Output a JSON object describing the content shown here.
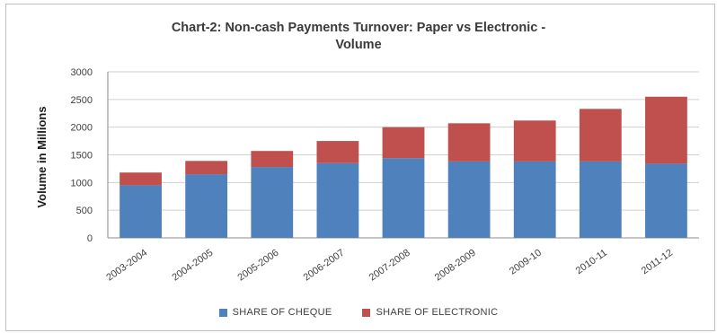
{
  "chart_data": {
    "type": "bar",
    "stacked": true,
    "title_line1": "Chart-2: Non-cash Payments Turnover: Paper vs Electronic -",
    "title_line2": "Volume",
    "ylabel": "Volume in Millions",
    "xlabel": "",
    "ylim": [
      0,
      3000
    ],
    "yticks": [
      0,
      500,
      1000,
      1500,
      2000,
      2500,
      3000
    ],
    "grid": true,
    "legend_position": "bottom",
    "categories": [
      "2003-2004",
      "2004-2005",
      "2005-2006",
      "2006-2007",
      "2007-2008",
      "2008-2009",
      "2009-10",
      "2010-11",
      "2011-12"
    ],
    "series": [
      {
        "name": "SHARE OF CHEQUE",
        "color": "#4f81bd",
        "values": [
          950,
          1150,
          1280,
          1350,
          1440,
          1380,
          1380,
          1380,
          1340
        ]
      },
      {
        "name": "SHARE OF ELECTRONIC",
        "color": "#c0504d",
        "values": [
          230,
          240,
          290,
          400,
          560,
          690,
          740,
          950,
          1210
        ]
      }
    ]
  }
}
